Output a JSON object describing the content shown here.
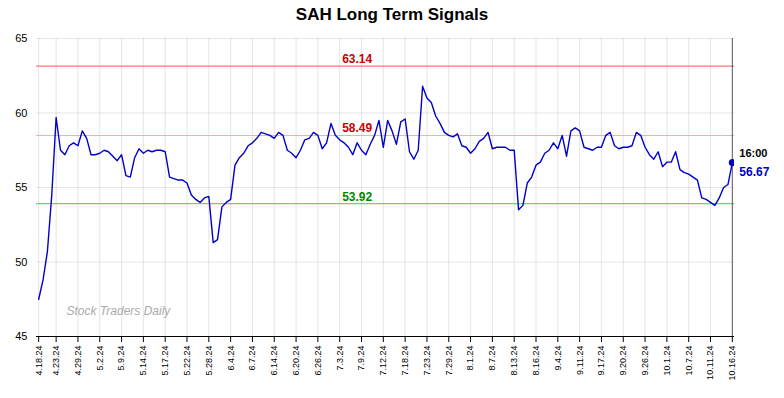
{
  "chart_data": {
    "type": "line",
    "title": "SAH Long Term Signals",
    "categories": [
      "4.18.24",
      null,
      null,
      null,
      "4.23.24",
      null,
      null,
      null,
      null,
      "4.29.24",
      null,
      null,
      null,
      null,
      "5.2.24",
      null,
      null,
      null,
      null,
      "5.9.24",
      null,
      null,
      null,
      null,
      "5.14.24",
      null,
      null,
      null,
      null,
      "5.17.24",
      null,
      null,
      null,
      null,
      "5.22.24",
      null,
      null,
      null,
      null,
      "5.28.24",
      null,
      null,
      null,
      null,
      "6.4.24",
      null,
      null,
      null,
      null,
      "6.7.24",
      null,
      null,
      null,
      null,
      "6.14.24",
      null,
      null,
      null,
      null,
      "6.20.24",
      null,
      null,
      null,
      null,
      "6.26.24",
      null,
      null,
      null,
      null,
      "7.3.24",
      null,
      null,
      null,
      null,
      "7.9.24",
      null,
      null,
      null,
      null,
      "7.12.24",
      null,
      null,
      null,
      null,
      "7.18.24",
      null,
      null,
      null,
      null,
      "7.23.24",
      null,
      null,
      null,
      null,
      "7.29.24",
      null,
      null,
      null,
      null,
      "8.1.24",
      null,
      null,
      null,
      null,
      "8.7.24",
      null,
      null,
      null,
      null,
      "8.13.24",
      null,
      null,
      null,
      null,
      "8.16.24",
      null,
      null,
      null,
      null,
      "9.4.24",
      null,
      null,
      null,
      null,
      "9.11.24",
      null,
      null,
      null,
      null,
      "9.17.24",
      null,
      null,
      null,
      null,
      "9.20.24",
      null,
      null,
      null,
      null,
      "9.26.24",
      null,
      null,
      null,
      null,
      "10.1.24",
      null,
      null,
      null,
      null,
      "10.7.24",
      null,
      null,
      null,
      null,
      "10.11.24",
      null,
      null,
      null,
      null,
      "10.16.24"
    ],
    "values": [
      47.5,
      48.8,
      50.7,
      54.5,
      59.7,
      57.5,
      57.2,
      57.8,
      58.0,
      57.8,
      58.8,
      58.3,
      57.2,
      57.2,
      57.3,
      57.5,
      57.4,
      57.1,
      56.8,
      57.2,
      55.8,
      55.7,
      57.0,
      57.6,
      57.3,
      57.5,
      57.4,
      57.5,
      57.5,
      57.4,
      55.7,
      55.6,
      55.5,
      55.5,
      55.3,
      54.5,
      54.2,
      54.0,
      54.3,
      54.4,
      51.3,
      51.5,
      53.7,
      54.0,
      54.2,
      56.5,
      57.0,
      57.3,
      57.8,
      58.0,
      58.3,
      58.7,
      58.6,
      58.5,
      58.3,
      58.7,
      58.5,
      57.5,
      57.3,
      57.0,
      57.5,
      58.2,
      58.3,
      58.7,
      58.5,
      57.6,
      58.0,
      59.3,
      58.5,
      58.2,
      58.0,
      57.7,
      57.2,
      58.0,
      57.5,
      57.2,
      57.9,
      58.5,
      59.5,
      57.7,
      59.5,
      58.8,
      57.9,
      59.4,
      59.6,
      57.4,
      56.9,
      57.5,
      61.8,
      61.0,
      60.7,
      59.8,
      59.3,
      58.7,
      58.5,
      58.4,
      58.6,
      57.8,
      57.7,
      57.3,
      57.6,
      58.1,
      58.3,
      58.7,
      57.6,
      57.7,
      57.7,
      57.7,
      57.5,
      57.5,
      53.5,
      53.8,
      55.3,
      55.7,
      56.5,
      56.7,
      57.3,
      57.5,
      58.0,
      57.6,
      58.5,
      57.1,
      58.8,
      59.0,
      58.8,
      57.7,
      57.6,
      57.5,
      57.7,
      57.7,
      58.5,
      58.7,
      57.8,
      57.6,
      57.7,
      57.7,
      57.8,
      58.7,
      58.5,
      57.7,
      57.2,
      56.9,
      57.4,
      56.4,
      56.7,
      56.7,
      57.4,
      56.2,
      56.0,
      55.9,
      55.7,
      55.5,
      54.3,
      54.2,
      54.0,
      53.8,
      54.3,
      55.0,
      55.2,
      56.67
    ],
    "color": "#0000cc",
    "ylim": [
      45,
      65
    ],
    "yticks": [
      45,
      50,
      55,
      60,
      65
    ],
    "grid": true,
    "hlines": [
      {
        "y": 63.14,
        "color": "#ff7777"
      },
      {
        "y": 58.49,
        "color": "#ffaaaa"
      },
      {
        "y": 53.92,
        "color": "#77cc77"
      }
    ],
    "annotations": [
      {
        "text": "63.14",
        "y": 63.14,
        "color": "#cc0000"
      },
      {
        "text": "58.49",
        "y": 58.49,
        "color": "#cc0000"
      },
      {
        "text": "53.92",
        "y": 53.92,
        "color": "#008800"
      }
    ],
    "last_point": {
      "label": "16:00",
      "value_label": "56.67"
    },
    "watermark": {
      "text": "Stock Traders Daily",
      "color": "#aaaaaa"
    }
  }
}
